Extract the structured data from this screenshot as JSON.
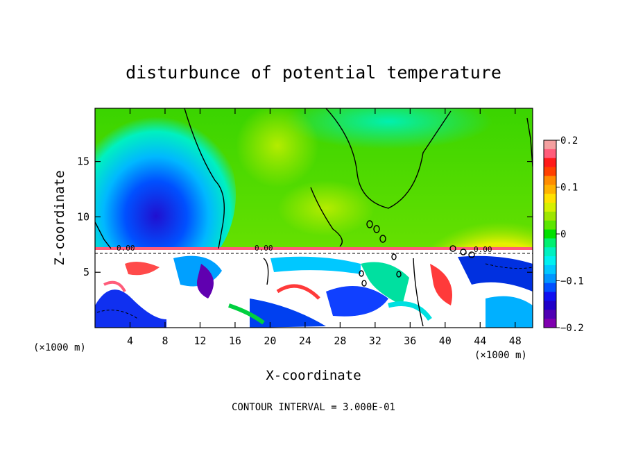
{
  "chart_data": {
    "type": "heatmap",
    "title": "disturbunce of potential temperature",
    "xlabel": "X-coordinate",
    "ylabel": "Z-coordinate",
    "x_unit_left": "(×1000 m)",
    "x_unit_right": "(×1000 m)",
    "xlim": [
      0,
      50
    ],
    "ylim": [
      0,
      19.8
    ],
    "x_ticks": [
      4,
      8,
      12,
      16,
      20,
      24,
      28,
      32,
      36,
      40,
      44,
      48
    ],
    "y_ticks": [
      5,
      10,
      15
    ],
    "colorbar": {
      "min": -0.2,
      "max": 0.2,
      "tick_values": [
        0.2,
        0.1,
        0,
        -0.1,
        -0.2
      ],
      "tick_labels": [
        "0.2",
        "0.1",
        "0",
        "−0.1",
        "−0.2"
      ],
      "colors": [
        "#f4a0a0",
        "#ff5c7a",
        "#ff1a1a",
        "#ff4000",
        "#ff8c00",
        "#ffb300",
        "#ffe100",
        "#d6f000",
        "#9ee600",
        "#5ce600",
        "#00e000",
        "#00f070",
        "#00f0c0",
        "#00f0f0",
        "#00c8ff",
        "#0096ff",
        "#0050ff",
        "#1010f0",
        "#2000c8",
        "#5000b4",
        "#8000b0"
      ]
    },
    "footer": "CONTOUR INTERVAL = 3.000E-01",
    "contour_labels": [
      "0.00",
      "0.00",
      "0.00"
    ]
  }
}
